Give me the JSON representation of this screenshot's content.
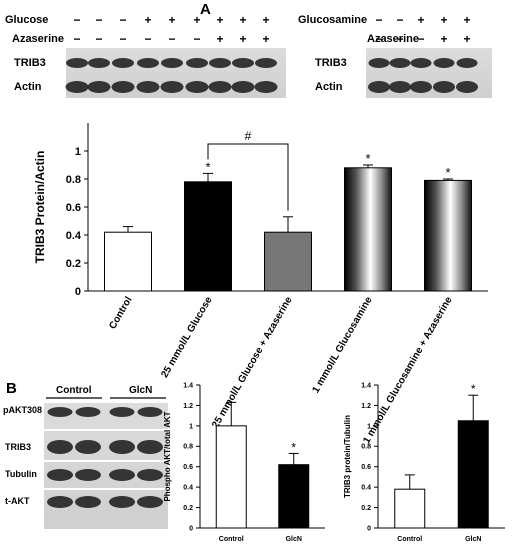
{
  "panel_a": {
    "letter": "A",
    "blot1": {
      "rows": [
        {
          "label": "Glucose",
          "signs": [
            "−",
            "−",
            "−",
            "+",
            "+",
            "+",
            "+",
            "+",
            "+"
          ]
        },
        {
          "label": "Azaserine",
          "signs": [
            "−",
            "−",
            "−",
            "−",
            "−",
            "−",
            "+",
            "+",
            "+"
          ]
        }
      ],
      "bands": [
        "TRIB3",
        "Actin"
      ]
    },
    "blot2": {
      "rows": [
        {
          "label": "Glucosamine",
          "signs": [
            "−",
            "−",
            "+",
            "+",
            "+"
          ]
        },
        {
          "label": "Azaserine",
          "signs": [
            "−",
            "−",
            "−",
            "+",
            "+"
          ]
        }
      ],
      "bands": [
        "TRIB3",
        "Actin"
      ]
    },
    "sig_hash": "#"
  },
  "panel_b": {
    "letter": "B",
    "group_labels": [
      "Control",
      "GlcN"
    ],
    "bands": [
      "pAKT308",
      "TRIB3",
      "Tubulin",
      "t-AKT"
    ]
  },
  "chart_data": [
    {
      "type": "bar",
      "ylabel": "TRIB3 Protein/Actin",
      "ylim": [
        0,
        1.2
      ],
      "yticks": [
        "0",
        "0.2",
        "0.4",
        "0.6",
        "0.8",
        "1"
      ],
      "categories": [
        "Control",
        "25 mmol/L Glucose",
        "25 mmol/L Glucose + Azaserine",
        "1 mmol/L Glucosamine",
        "1 mmol/L Glucosamine + Azaserine"
      ],
      "values": [
        0.42,
        0.78,
        0.42,
        0.88,
        0.79
      ],
      "errors": [
        0.04,
        0.06,
        0.11,
        0.02,
        0.01
      ],
      "annotations": [
        "",
        "*",
        "",
        "*",
        "*"
      ],
      "fills": [
        "white",
        "black",
        "gray",
        "cylinder",
        "cylinder"
      ],
      "comparison": {
        "from": 1,
        "to": 2,
        "label": "#"
      }
    },
    {
      "type": "bar",
      "ylabel": "Phospho AKT/total AKT",
      "ylim": [
        0,
        1.4
      ],
      "yticks": [
        "0",
        "0.2",
        "0.4",
        "0.6",
        "0.8",
        "1",
        "1.2",
        "1.4"
      ],
      "categories": [
        "Control",
        "GlcN"
      ],
      "values": [
        1.0,
        0.62
      ],
      "errors": [
        0.23,
        0.11
      ],
      "annotations": [
        "",
        "*"
      ],
      "fills": [
        "white",
        "black"
      ]
    },
    {
      "type": "bar",
      "ylabel": "TRIB3 protein/Tubulin",
      "ylim": [
        0,
        1.4
      ],
      "yticks": [
        "0",
        "0.2",
        "0.4",
        "0.6",
        "0.8",
        "1",
        "1.2",
        "1.4"
      ],
      "categories": [
        "Control",
        "GlcN"
      ],
      "values": [
        0.38,
        1.05
      ],
      "errors": [
        0.14,
        0.25
      ],
      "annotations": [
        "",
        "*"
      ],
      "fills": [
        "white",
        "black"
      ]
    }
  ]
}
